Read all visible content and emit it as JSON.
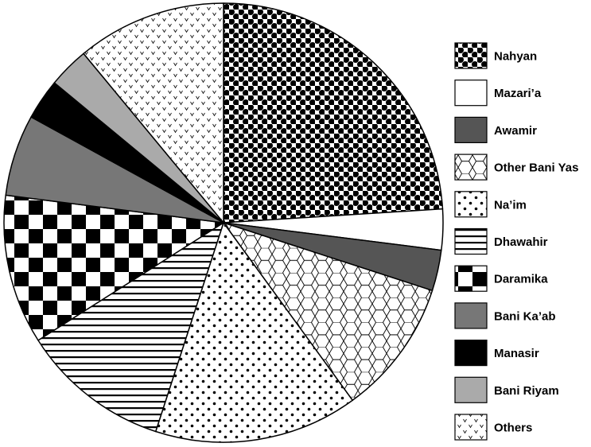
{
  "chart_data": {
    "type": "pie",
    "title": "",
    "legend_position": "right",
    "slices": [
      {
        "label": "Nahyan",
        "value": 24,
        "pattern": "dots-large",
        "color": "#000000"
      },
      {
        "label": "Mazari’a",
        "value": 3,
        "pattern": "solid",
        "color": "#ffffff"
      },
      {
        "label": "Awamir",
        "value": 3,
        "pattern": "solid",
        "color": "#555555"
      },
      {
        "label": "Other Bani Yas",
        "value": 10,
        "pattern": "hexagon",
        "color": "#ffffff"
      },
      {
        "label": "Na’im",
        "value": 15,
        "pattern": "dots-small",
        "color": "#ffffff"
      },
      {
        "label": "Dhawahir",
        "value": 11,
        "pattern": "hlines",
        "color": "#ffffff"
      },
      {
        "label": "Daramika",
        "value": 11,
        "pattern": "checker",
        "color": "#000000"
      },
      {
        "label": "Bani Ka’ab",
        "value": 6,
        "pattern": "solid",
        "color": "#777777"
      },
      {
        "label": "Manasir",
        "value": 3,
        "pattern": "solid",
        "color": "#000000"
      },
      {
        "label": "Bani Riyam",
        "value": 3,
        "pattern": "solid",
        "color": "#aaaaaa"
      },
      {
        "label": "Others",
        "value": 11,
        "pattern": "v-marks",
        "color": "#ffffff"
      }
    ]
  }
}
